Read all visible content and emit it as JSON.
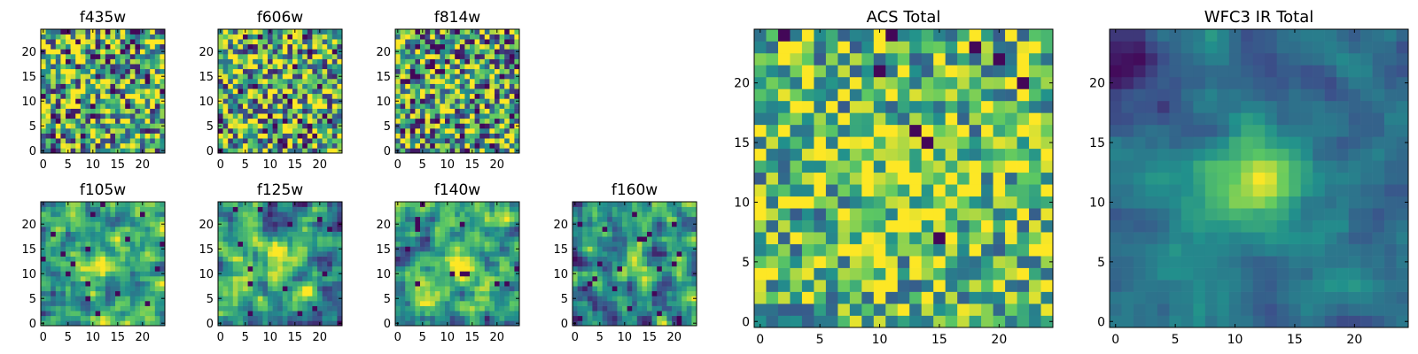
{
  "figure": {
    "colormap": "viridis",
    "colormap_stops": [
      "#440154",
      "#3b528b",
      "#21918c",
      "#5ec962",
      "#fde725"
    ]
  },
  "chart_data": [
    {
      "type": "heatmap",
      "title": "f435w",
      "grid": [
        25,
        25
      ],
      "xticks": [
        "0",
        "5",
        "10",
        "15",
        "20"
      ],
      "yticks": [
        "0",
        "5",
        "10",
        "15",
        "20"
      ],
      "texture": "noise",
      "peak": 0.0,
      "noise": 0.55,
      "mean": 0.62,
      "holes": 0.05,
      "seed": 11
    },
    {
      "type": "heatmap",
      "title": "f606w",
      "grid": [
        25,
        25
      ],
      "xticks": [
        "0",
        "5",
        "10",
        "15",
        "20"
      ],
      "yticks": [
        "0",
        "5",
        "10",
        "15",
        "20"
      ],
      "texture": "noise",
      "peak": 0.05,
      "noise": 0.55,
      "mean": 0.64,
      "holes": 0.04,
      "seed": 23
    },
    {
      "type": "heatmap",
      "title": "f814w",
      "grid": [
        25,
        25
      ],
      "xticks": [
        "0",
        "5",
        "10",
        "15",
        "20"
      ],
      "yticks": [
        "0",
        "5",
        "10",
        "15",
        "20"
      ],
      "texture": "noise",
      "peak": 0.15,
      "noise": 0.55,
      "mean": 0.58,
      "holes": 0.06,
      "seed": 37
    },
    {
      "type": "heatmap",
      "title": "f105w",
      "grid": [
        25,
        25
      ],
      "xticks": [
        "0",
        "5",
        "10",
        "15",
        "20"
      ],
      "yticks": [
        "0",
        "5",
        "10",
        "15",
        "20"
      ],
      "texture": "smooth",
      "peak": 0.35,
      "noise": 0.35,
      "mean": 0.58,
      "holes": 0.02,
      "seed": 41
    },
    {
      "type": "heatmap",
      "title": "f125w",
      "grid": [
        25,
        25
      ],
      "xticks": [
        "0",
        "5",
        "10",
        "15",
        "20"
      ],
      "yticks": [
        "0",
        "5",
        "10",
        "15",
        "20"
      ],
      "texture": "smooth",
      "peak": 0.35,
      "noise": 0.35,
      "mean": 0.55,
      "holes": 0.03,
      "seed": 53
    },
    {
      "type": "heatmap",
      "title": "f140w",
      "grid": [
        25,
        25
      ],
      "xticks": [
        "0",
        "5",
        "10",
        "15",
        "20"
      ],
      "yticks": [
        "0",
        "5",
        "10",
        "15",
        "20"
      ],
      "texture": "smooth",
      "peak": 0.35,
      "noise": 0.35,
      "mean": 0.6,
      "holes": 0.02,
      "seed": 67
    },
    {
      "type": "heatmap",
      "title": "f160w",
      "grid": [
        25,
        25
      ],
      "xticks": [
        "0",
        "5",
        "10",
        "15",
        "20"
      ],
      "yticks": [
        "0",
        "5",
        "10",
        "15",
        "20"
      ],
      "texture": "smooth",
      "peak": 0.35,
      "noise": 0.38,
      "mean": 0.5,
      "holes": 0.04,
      "seed": 79
    },
    {
      "type": "heatmap",
      "title": "ACS Total",
      "grid": [
        25,
        25
      ],
      "xticks": [
        "0",
        "5",
        "10",
        "15",
        "20"
      ],
      "yticks": [
        "0",
        "5",
        "10",
        "15",
        "20"
      ],
      "texture": "noise",
      "peak": 0.2,
      "noise": 0.4,
      "mean": 0.68,
      "holes": 0.015,
      "seed": 97
    },
    {
      "type": "heatmap",
      "title": "WFC3 IR Total",
      "grid": [
        25,
        25
      ],
      "xticks": [
        "0",
        "5",
        "10",
        "15",
        "20"
      ],
      "yticks": [
        "0",
        "5",
        "10",
        "15",
        "20"
      ],
      "texture": "smooth",
      "peak": 0.58,
      "noise": 0.12,
      "mean": 0.4,
      "holes": 0.0,
      "seed": 101
    }
  ]
}
